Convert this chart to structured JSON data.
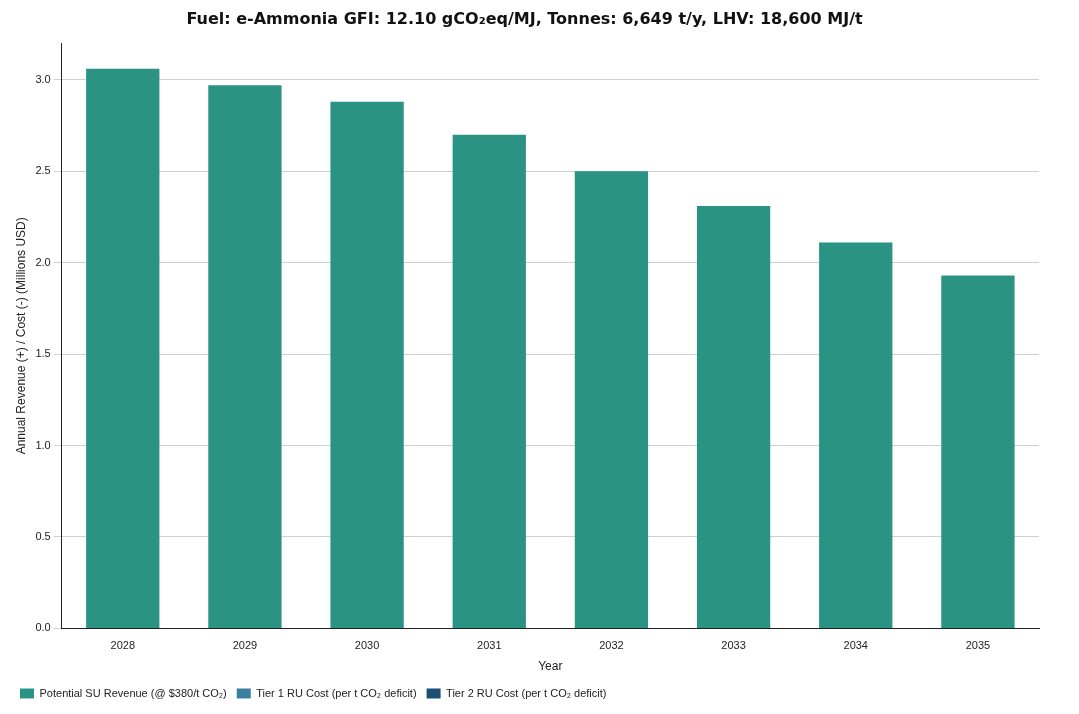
{
  "chart_data": {
    "type": "bar",
    "title": "Fuel: e-Ammonia GFI: 12.10 gCO₂eq/MJ, Tonnes: 6,649 t/y, LHV: 18,600 MJ/t",
    "xlabel": "Year",
    "ylabel": "Annual Revenue (+) / Cost (-) (Millions USD)",
    "categories": [
      "2028",
      "2029",
      "2030",
      "2031",
      "2032",
      "2033",
      "2034",
      "2035"
    ],
    "series": [
      {
        "name": "Potential SU Revenue (@ $380/t CO₂)",
        "color": "#2a9384",
        "values": [
          3.06,
          2.97,
          2.88,
          2.7,
          2.5,
          2.31,
          2.11,
          1.93
        ]
      },
      {
        "name": "Tier 1 RU Cost (per t CO₂ deficit)",
        "color": "#3a7fa0",
        "values": [
          0,
          0,
          0,
          0,
          0,
          0,
          0,
          0
        ]
      },
      {
        "name": "Tier 2 RU Cost (per t CO₂ deficit)",
        "color": "#1b4f72",
        "values": [
          0,
          0,
          0,
          0,
          0,
          0,
          0,
          0
        ]
      }
    ],
    "stacked": true,
    "ylim": [
      0,
      3.2
    ],
    "yticks": [
      {
        "value": 0,
        "label": "0.0"
      },
      {
        "value": 0.5,
        "label": "0.5"
      },
      {
        "value": 1,
        "label": "1.0"
      },
      {
        "value": 1.5,
        "label": "1.5"
      },
      {
        "value": 2,
        "label": "2.0"
      },
      {
        "value": 2.5,
        "label": "2.5"
      },
      {
        "value": 3,
        "label": "3.0"
      }
    ],
    "grid": "y",
    "legend": "bottom left"
  }
}
